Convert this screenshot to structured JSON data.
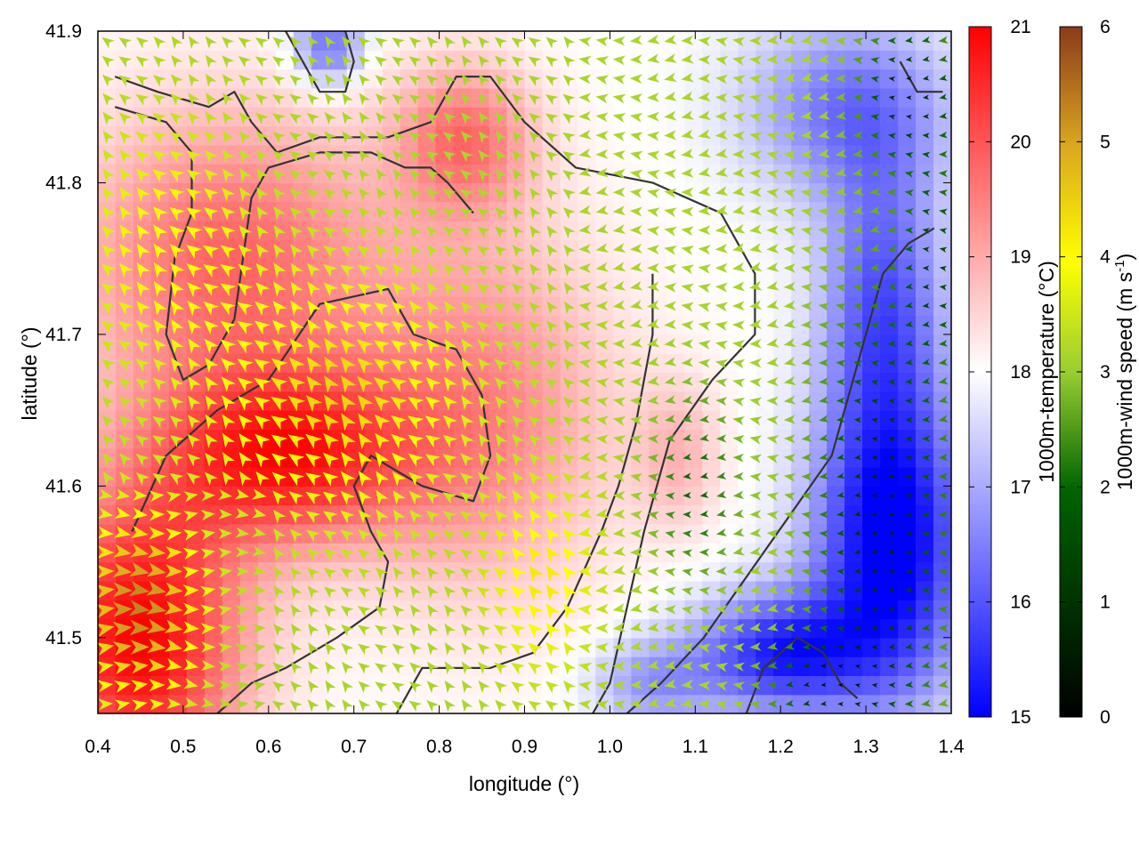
{
  "chart_data": {
    "type": "heatmap",
    "title": "",
    "xlabel": "longitude (°)",
    "ylabel": "latitude (°)",
    "xlim": [
      0.4,
      1.4
    ],
    "ylim": [
      41.45,
      41.9
    ],
    "xticks": [
      "0.4",
      "0.5",
      "0.6",
      "0.7",
      "0.8",
      "0.9",
      "1.0",
      "1.1",
      "1.2",
      "1.3",
      "1.4"
    ],
    "yticks": [
      "41.5",
      "41.6",
      "41.7",
      "41.8",
      "41.9"
    ],
    "grid": false,
    "temperature_colorbar": {
      "label": "1000m-temperature (°C)",
      "range": [
        15,
        21
      ],
      "ticks": [
        "15",
        "16",
        "17",
        "18",
        "19",
        "20",
        "21"
      ],
      "colors": [
        "#0000ff",
        "#ffffff",
        "#ff0000"
      ]
    },
    "wind_colorbar": {
      "label_main": "1000m-wind speed (m s",
      "label_sup": "-1",
      "label_end": ")",
      "range": [
        0,
        6
      ],
      "ticks": [
        "0",
        "1",
        "2",
        "3",
        "4",
        "5",
        "6"
      ],
      "colors": [
        "#000000",
        "#006400",
        "#9acd32",
        "#ffff00",
        "#daa520",
        "#8b4513"
      ]
    },
    "temperature_field": {
      "description_units": "°C",
      "background": 18,
      "anomalies": [
        {
          "lon": 0.45,
          "lat": 41.5,
          "amp": 3.0,
          "rlon": 0.12,
          "rlat": 0.1
        },
        {
          "lon": 0.62,
          "lat": 41.62,
          "amp": 2.5,
          "rlon": 0.15,
          "rlat": 0.06
        },
        {
          "lon": 0.55,
          "lat": 41.75,
          "amp": 1.8,
          "rlon": 0.18,
          "rlat": 0.1
        },
        {
          "lon": 0.83,
          "lat": 41.83,
          "amp": 1.6,
          "rlon": 0.08,
          "rlat": 0.05
        },
        {
          "lon": 0.85,
          "lat": 41.65,
          "amp": 1.4,
          "rlon": 0.15,
          "rlat": 0.12
        },
        {
          "lon": 1.08,
          "lat": 41.62,
          "amp": 0.8,
          "rlon": 0.05,
          "rlat": 0.05
        },
        {
          "lon": 1.33,
          "lat": 41.56,
          "amp": -3.2,
          "rlon": 0.09,
          "rlat": 0.1
        },
        {
          "lon": 1.2,
          "lat": 41.49,
          "amp": -2.6,
          "rlon": 0.1,
          "rlat": 0.04
        },
        {
          "lon": 1.32,
          "lat": 41.72,
          "amp": -2.0,
          "rlon": 0.07,
          "rlat": 0.1
        },
        {
          "lon": 1.28,
          "lat": 41.85,
          "amp": -1.6,
          "rlon": 0.12,
          "rlat": 0.06
        },
        {
          "lon": 0.67,
          "lat": 41.89,
          "amp": -1.8,
          "rlon": 0.04,
          "rlat": 0.025
        },
        {
          "lon": 1.05,
          "lat": 41.47,
          "amp": -1.2,
          "rlon": 0.07,
          "rlat": 0.03
        }
      ]
    },
    "wind_field": {
      "grid_step_lon": 0.02,
      "grid_step_lat": 0.0125,
      "speed_background": 2.6,
      "speed_anomalies": [
        {
          "lon": 0.68,
          "lat": 41.66,
          "amp": 1.6,
          "rlon": 0.15,
          "rlat": 0.08
        },
        {
          "lon": 0.45,
          "lat": 41.52,
          "amp": 2.6,
          "rlon": 0.07,
          "rlat": 0.06
        },
        {
          "lon": 0.92,
          "lat": 41.54,
          "amp": 1.3,
          "rlon": 0.06,
          "rlat": 0.06
        },
        {
          "lon": 0.48,
          "lat": 41.76,
          "amp": 1.0,
          "rlon": 0.1,
          "rlat": 0.08
        },
        {
          "lon": 1.32,
          "lat": 41.58,
          "amp": -2.3,
          "rlon": 0.08,
          "rlat": 0.15
        },
        {
          "lon": 1.35,
          "lat": 41.86,
          "amp": -2.2,
          "rlon": 0.06,
          "rlat": 0.05
        },
        {
          "lon": 1.1,
          "lat": 41.6,
          "amp": -1.4,
          "rlon": 0.05,
          "rlat": 0.06
        },
        {
          "lon": 1.38,
          "lat": 41.75,
          "amp": -1.5,
          "rlon": 0.04,
          "rlat": 0.06
        },
        {
          "lon": 1.25,
          "lat": 41.47,
          "amp": -1.8,
          "rlon": 0.07,
          "rlat": 0.03
        }
      ],
      "direction_zones": [
        {
          "lon_max": 0.6,
          "lat_max": 41.6,
          "toward": "east"
        },
        {
          "lon_max": 0.97,
          "lat_min": 41.6,
          "toward": "north-west"
        },
        {
          "lon_min": 0.97,
          "toward": "west"
        },
        {
          "lon_max": 0.97,
          "lat_max": 41.6,
          "toward": "north-west"
        }
      ]
    },
    "isotherms": [
      {
        "name": "contour-west-ridge",
        "points": [
          [
            0.42,
            41.87
          ],
          [
            0.47,
            41.86
          ],
          [
            0.53,
            41.85
          ],
          [
            0.56,
            41.86
          ],
          [
            0.58,
            41.84
          ],
          [
            0.61,
            41.82
          ],
          [
            0.66,
            41.83
          ],
          [
            0.74,
            41.83
          ],
          [
            0.79,
            41.84
          ],
          [
            0.82,
            41.87
          ],
          [
            0.86,
            41.87
          ],
          [
            0.9,
            41.84
          ],
          [
            0.96,
            41.81
          ],
          [
            1.05,
            41.8
          ],
          [
            1.13,
            41.78
          ],
          [
            1.17,
            41.74
          ],
          [
            1.17,
            41.7
          ],
          [
            1.12,
            41.67
          ],
          [
            1.07,
            41.63
          ],
          [
            1.04,
            41.57
          ],
          [
            1.02,
            41.52
          ],
          [
            1.0,
            41.47
          ],
          [
            0.98,
            41.45
          ]
        ]
      },
      {
        "name": "contour-west-loop",
        "points": [
          [
            0.42,
            41.85
          ],
          [
            0.48,
            41.84
          ],
          [
            0.51,
            41.82
          ],
          [
            0.51,
            41.78
          ],
          [
            0.49,
            41.75
          ],
          [
            0.48,
            41.7
          ],
          [
            0.5,
            41.67
          ],
          [
            0.53,
            41.68
          ],
          [
            0.56,
            41.71
          ],
          [
            0.57,
            41.75
          ],
          [
            0.58,
            41.79
          ],
          [
            0.6,
            41.81
          ],
          [
            0.66,
            41.82
          ],
          [
            0.72,
            41.82
          ],
          [
            0.76,
            41.81
          ],
          [
            0.79,
            41.81
          ],
          [
            0.81,
            41.8
          ],
          [
            0.84,
            41.78
          ]
        ]
      },
      {
        "name": "contour-central",
        "points": [
          [
            0.44,
            41.57
          ],
          [
            0.48,
            41.62
          ],
          [
            0.54,
            41.65
          ],
          [
            0.6,
            41.67
          ],
          [
            0.66,
            41.72
          ],
          [
            0.74,
            41.73
          ],
          [
            0.77,
            41.7
          ],
          [
            0.82,
            41.69
          ],
          [
            0.85,
            41.66
          ],
          [
            0.86,
            41.62
          ],
          [
            0.84,
            41.59
          ],
          [
            0.78,
            41.6
          ],
          [
            0.72,
            41.62
          ],
          [
            0.7,
            41.6
          ],
          [
            0.72,
            41.57
          ],
          [
            0.74,
            41.55
          ],
          [
            0.73,
            41.52
          ],
          [
            0.68,
            41.5
          ],
          [
            0.62,
            41.48
          ],
          [
            0.58,
            41.47
          ],
          [
            0.54,
            41.45
          ]
        ]
      },
      {
        "name": "contour-south",
        "points": [
          [
            0.75,
            41.45
          ],
          [
            0.78,
            41.48
          ],
          [
            0.86,
            41.48
          ],
          [
            0.91,
            41.49
          ],
          [
            0.95,
            41.52
          ],
          [
            0.99,
            41.57
          ],
          [
            1.01,
            41.6
          ],
          [
            1.03,
            41.64
          ],
          [
            1.05,
            41.7
          ],
          [
            1.05,
            41.74
          ]
        ]
      },
      {
        "name": "contour-east",
        "points": [
          [
            1.02,
            41.45
          ],
          [
            1.06,
            41.47
          ],
          [
            1.11,
            41.5
          ],
          [
            1.16,
            41.54
          ],
          [
            1.21,
            41.58
          ],
          [
            1.26,
            41.62
          ],
          [
            1.28,
            41.66
          ],
          [
            1.3,
            41.7
          ],
          [
            1.32,
            41.74
          ],
          [
            1.35,
            41.76
          ],
          [
            1.38,
            41.77
          ]
        ]
      },
      {
        "name": "contour-southeast",
        "points": [
          [
            1.16,
            41.45
          ],
          [
            1.18,
            41.48
          ],
          [
            1.22,
            41.5
          ],
          [
            1.25,
            41.49
          ],
          [
            1.27,
            41.47
          ],
          [
            1.29,
            41.46
          ]
        ]
      },
      {
        "name": "contour-north-bump",
        "points": [
          [
            0.62,
            41.9
          ],
          [
            0.64,
            41.88
          ],
          [
            0.66,
            41.86
          ],
          [
            0.69,
            41.86
          ],
          [
            0.7,
            41.88
          ],
          [
            0.69,
            41.9
          ]
        ]
      },
      {
        "name": "contour-northeast",
        "points": [
          [
            1.34,
            41.88
          ],
          [
            1.36,
            41.86
          ],
          [
            1.39,
            41.86
          ]
        ]
      }
    ]
  }
}
